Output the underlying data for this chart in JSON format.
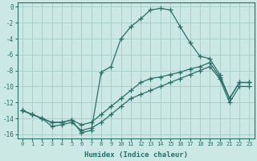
{
  "bg_color": "#cce8e4",
  "grid_color": "#aacfcb",
  "line_color": "#2a6e6a",
  "xlabel": "Humidex (Indice chaleur)",
  "xlim": [
    -0.5,
    23.5
  ],
  "ylim": [
    -16.5,
    0.5
  ],
  "yticks": [
    0,
    -2,
    -4,
    -6,
    -8,
    -10,
    -12,
    -14,
    -16
  ],
  "xticks": [
    0,
    1,
    2,
    3,
    4,
    5,
    6,
    7,
    8,
    9,
    10,
    11,
    12,
    13,
    14,
    15,
    16,
    17,
    18,
    19,
    20,
    21,
    22,
    23
  ],
  "line1_x": [
    0,
    1,
    2,
    3,
    4,
    5,
    6,
    7,
    8,
    9,
    10,
    11,
    12,
    13,
    14,
    15,
    16,
    17,
    18,
    19,
    20,
    21,
    22,
    23
  ],
  "line1_y": [
    -13.0,
    -13.5,
    -14.0,
    -14.5,
    -14.5,
    -14.2,
    -15.8,
    -15.5,
    -8.2,
    -7.5,
    -4.0,
    -2.5,
    -1.5,
    -0.4,
    -0.2,
    -0.4,
    -2.5,
    -4.5,
    -6.2,
    -6.5,
    -8.5,
    -11.5,
    -9.5,
    -9.5
  ],
  "line2_x": [
    0,
    1,
    2,
    3,
    4,
    5,
    6,
    7,
    8,
    9,
    10,
    11,
    12,
    13,
    14,
    15,
    16,
    17,
    18,
    19,
    20,
    21,
    22,
    23
  ],
  "line2_y": [
    -13.0,
    -13.5,
    -14.0,
    -14.5,
    -14.5,
    -14.2,
    -14.8,
    -14.5,
    -13.5,
    -12.5,
    -11.5,
    -10.5,
    -9.5,
    -9.0,
    -8.8,
    -8.5,
    -8.2,
    -7.8,
    -7.5,
    -7.0,
    -8.8,
    -11.5,
    -9.5,
    -9.5
  ],
  "line3_x": [
    0,
    1,
    2,
    3,
    4,
    5,
    6,
    7,
    8,
    9,
    10,
    11,
    12,
    13,
    14,
    15,
    16,
    17,
    18,
    19,
    20,
    21,
    22,
    23
  ],
  "line3_y": [
    -13.0,
    -13.5,
    -14.0,
    -15.0,
    -14.8,
    -14.5,
    -15.5,
    -15.2,
    -14.5,
    -13.5,
    -12.5,
    -11.5,
    -11.0,
    -10.5,
    -10.0,
    -9.5,
    -9.0,
    -8.5,
    -8.0,
    -7.5,
    -9.0,
    -12.0,
    -10.0,
    -10.0
  ]
}
